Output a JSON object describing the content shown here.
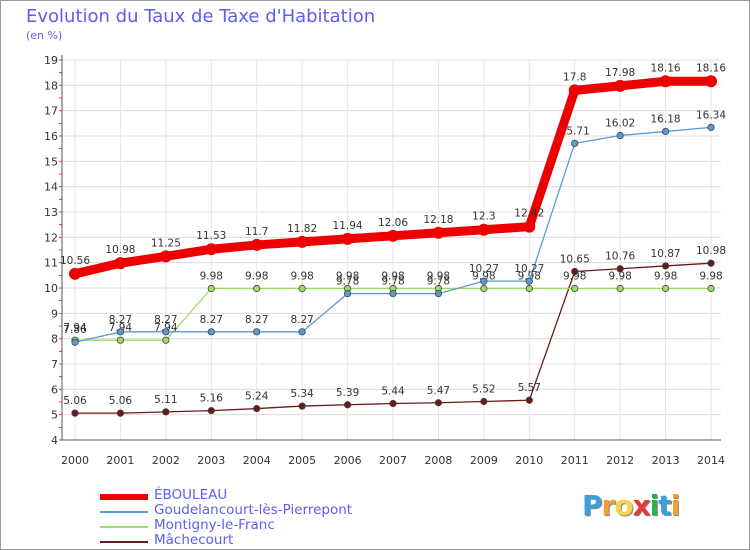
{
  "chart_data": {
    "type": "line",
    "title": "Evolution du Taux de Taxe d'Habitation",
    "subtitle": "(en %)",
    "xlabel": "",
    "ylabel": "(en %)",
    "categories": [
      "2000",
      "2001",
      "2002",
      "2003",
      "2004",
      "2005",
      "2006",
      "2007",
      "2008",
      "2009",
      "2010",
      "2011",
      "2012",
      "2013",
      "2014"
    ],
    "ylim": [
      4,
      19
    ],
    "yticks": [
      4,
      5,
      6,
      7,
      8,
      9,
      10,
      11,
      12,
      13,
      14,
      15,
      16,
      17,
      18,
      19
    ],
    "grid": true,
    "legend_position": "bottom-left",
    "series": [
      {
        "name": "ÉBOULEAU",
        "color": "#ee0000",
        "values": [
          10.56,
          10.98,
          11.25,
          11.53,
          11.7,
          11.82,
          11.94,
          12.06,
          12.18,
          12.3,
          12.42,
          17.8,
          17.98,
          18.16,
          18.16
        ],
        "labels": [
          "10.56",
          "10.98",
          "11.25",
          "11.53",
          "11.7",
          "11.82",
          "11.94",
          "12.06",
          "12.18",
          "12.3",
          "12.42",
          "17.8",
          "17.98",
          "18.16",
          "18.16"
        ]
      },
      {
        "name": "Goudelancourt-lès-Pierrepont",
        "color": "#5a9bd5",
        "values": [
          7.86,
          8.27,
          8.27,
          8.27,
          8.27,
          8.27,
          9.78,
          9.78,
          9.78,
          10.27,
          10.27,
          15.71,
          16.02,
          16.18,
          16.34
        ],
        "labels": [
          "7.86",
          "8.27",
          "8.27",
          "8.27",
          "8.27",
          "8.27",
          "9.78",
          "9.78",
          "9.78",
          "10.27",
          "10.27",
          "15.71",
          "16.02",
          "16.18",
          "16.34"
        ]
      },
      {
        "name": "Montigny-le-Franc",
        "color": "#99dd66",
        "values": [
          7.94,
          7.94,
          7.94,
          9.98,
          9.98,
          9.98,
          9.98,
          9.98,
          9.98,
          9.98,
          9.98,
          9.98,
          9.98,
          9.98,
          9.98
        ],
        "labels": [
          "7.94",
          "7.94",
          "7.94",
          "9.98",
          "9.98",
          "9.98",
          "9.98",
          "9.98",
          "9.98",
          "9.98",
          "9.98",
          "9.98",
          "9.98",
          "9.98",
          "9.98"
        ]
      },
      {
        "name": "Mâchecourt",
        "color": "#6b1a1a",
        "values": [
          5.06,
          5.06,
          5.11,
          5.16,
          5.24,
          5.34,
          5.39,
          5.44,
          5.47,
          5.52,
          5.57,
          10.65,
          10.76,
          10.87,
          10.98
        ],
        "labels": [
          "5.06",
          "5.06",
          "5.11",
          "5.16",
          "5.24",
          "5.34",
          "5.39",
          "5.44",
          "5.47",
          "5.52",
          "5.57",
          "10.65",
          "10.76",
          "10.87",
          "10.98"
        ]
      }
    ]
  },
  "legend": {
    "items": [
      "ÉBOULEAU",
      "Goudelancourt-lès-Pierrepont",
      "Montigny-le-Franc",
      "Mâchecourt"
    ]
  },
  "logo": {
    "letters": [
      "P",
      "r",
      "o",
      "x",
      "i",
      "t",
      "i"
    ],
    "colors": [
      "#3aa0e0",
      "#f0a030",
      "#f7d24a",
      "#e23838",
      "#2bb24c",
      "#3aa0e0",
      "#f0a030"
    ]
  }
}
